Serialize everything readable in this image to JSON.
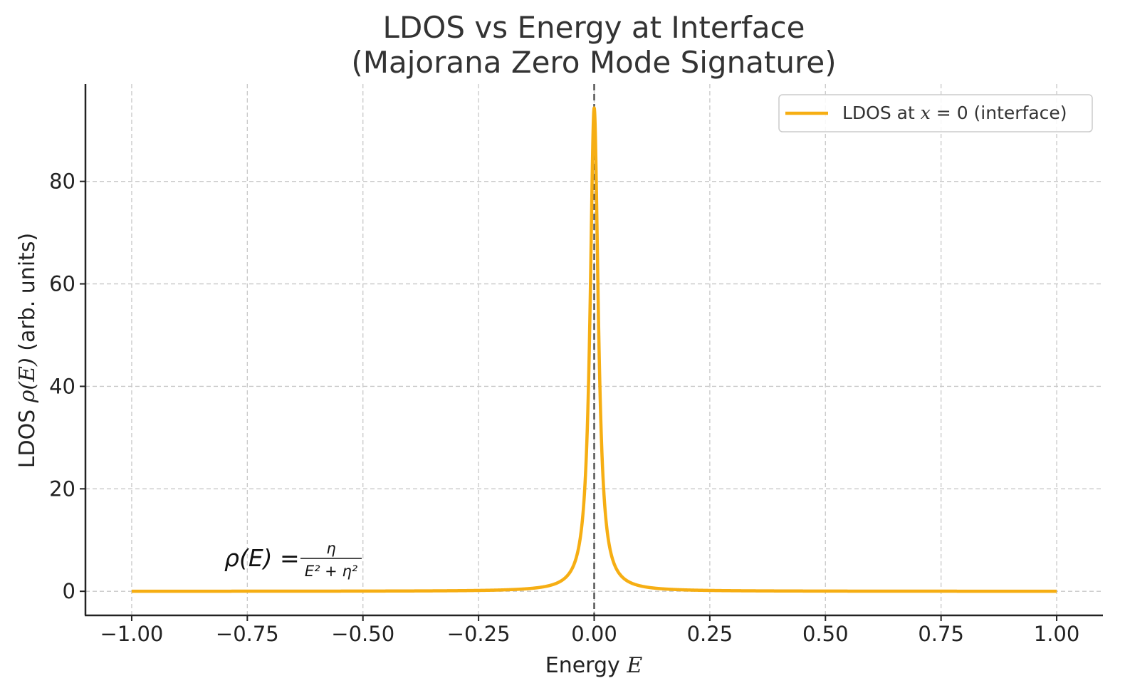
{
  "chart_data": {
    "type": "line",
    "title_line1": "LDOS vs Energy at Interface",
    "title_line2": "(Majorana Zero Mode Signature)",
    "xlabel_prefix": "Energy ",
    "xlabel_var": "E",
    "ylabel_prefix": "LDOS  ",
    "ylabel_math": "ρ(E)",
    "ylabel_suffix": " (arb. units)",
    "xlim": [
      -1.1,
      1.1
    ],
    "ylim": [
      -4.7,
      99
    ],
    "x_ticks": [
      -1.0,
      -0.75,
      -0.5,
      -0.25,
      0.0,
      0.25,
      0.5,
      0.75,
      1.0
    ],
    "x_tick_labels": [
      "−1.00",
      "−0.75",
      "−0.50",
      "−0.25",
      "0.00",
      "0.25",
      "0.50",
      "0.75",
      "1.00"
    ],
    "y_ticks": [
      0,
      20,
      40,
      60,
      80
    ],
    "y_tick_labels": [
      "0",
      "20",
      "40",
      "60",
      "80"
    ],
    "grid": true,
    "vline_x": 0.0,
    "series": [
      {
        "name": "LDOS at x = 0 (interface)",
        "legend_prefix": "LDOS at ",
        "legend_var": "x",
        "legend_suffix": " = 0 (interface)",
        "color": "#f6ae13",
        "function": "lorentzian",
        "eta": 0.0106,
        "x_range": [
          -1.0,
          1.0
        ],
        "peak_value": 94.3
      }
    ],
    "annotation": {
      "lhs": "ρ(E) = ",
      "numerator": "η",
      "denominator": "E² + η²",
      "position": "lower-left"
    },
    "legend_position": "top-right"
  },
  "colors": {
    "line": "#f6ae13",
    "grid": "#c8c8c8",
    "axis": "#222222",
    "vline": "#555555"
  }
}
